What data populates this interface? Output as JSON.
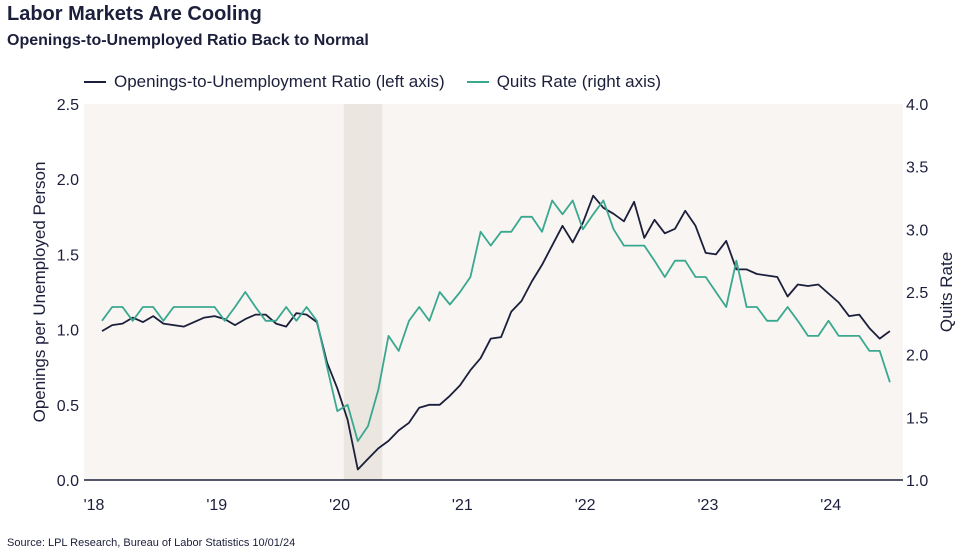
{
  "header": {
    "title": "Labor Markets Are Cooling",
    "subtitle": "Openings-to-Unemployed Ratio Back to Normal"
  },
  "footer": {
    "source": "Source: LPL Research, Bureau of Labor Statistics 10/01/24"
  },
  "colors": {
    "ratio": "#1c1f3b",
    "quits": "#3aa88f",
    "plot_bg": "#f8f5f3",
    "recession": "#ebe6df"
  },
  "chart_data": {
    "type": "line",
    "title": "Labor Markets Are Cooling",
    "subtitle": "Openings-to-Unemployed Ratio Back to Normal",
    "ylabel_left": "Openings per Unemployed Person",
    "ylabel_right": "Quits Rate",
    "ylim_left": [
      0,
      2.5
    ],
    "ylim_right": [
      1.0,
      4.0
    ],
    "yticks_left": [
      "0.0",
      "0.5",
      "1.0",
      "1.5",
      "2.0",
      "2.5"
    ],
    "yticks_right": [
      "1.0",
      "1.5",
      "2.0",
      "2.5",
      "3.0",
      "3.5",
      "4.0"
    ],
    "xticks": [
      {
        "label": "'18",
        "year": 2018
      },
      {
        "label": "'19",
        "year": 2019
      },
      {
        "label": "'20",
        "year": 2020
      },
      {
        "label": "'21",
        "year": 2021
      },
      {
        "label": "'22",
        "year": 2022
      },
      {
        "label": "'23",
        "year": 2023
      },
      {
        "label": "'24",
        "year": 2024
      }
    ],
    "legend_position": "top-left",
    "shaded_period": {
      "start": "2020-02",
      "end": "2020-04"
    },
    "series": [
      {
        "name": "Openings-to-Unemployment Ratio (left axis)",
        "axis": "left",
        "points": [
          [
            "2018-01",
            0.99
          ],
          [
            "2018-02",
            1.03
          ],
          [
            "2018-03",
            1.04
          ],
          [
            "2018-04",
            1.08
          ],
          [
            "2018-05",
            1.05
          ],
          [
            "2018-06",
            1.09
          ],
          [
            "2018-07",
            1.04
          ],
          [
            "2018-08",
            1.03
          ],
          [
            "2018-09",
            1.02
          ],
          [
            "2018-10",
            1.05
          ],
          [
            "2018-11",
            1.08
          ],
          [
            "2018-12",
            1.09
          ],
          [
            "2019-01",
            1.07
          ],
          [
            "2019-02",
            1.03
          ],
          [
            "2019-03",
            1.07
          ],
          [
            "2019-04",
            1.1
          ],
          [
            "2019-05",
            1.1
          ],
          [
            "2019-06",
            1.04
          ],
          [
            "2019-07",
            1.02
          ],
          [
            "2019-08",
            1.11
          ],
          [
            "2019-09",
            1.1
          ],
          [
            "2019-10",
            1.05
          ],
          [
            "2019-11",
            0.78
          ],
          [
            "2019-12",
            0.61
          ],
          [
            "2020-01",
            0.4
          ],
          [
            "2020-02",
            0.07
          ],
          [
            "2020-03",
            0.14
          ],
          [
            "2020-04",
            0.21
          ],
          [
            "2020-05",
            0.26
          ],
          [
            "2020-06",
            0.33
          ],
          [
            "2020-07",
            0.38
          ],
          [
            "2020-08",
            0.48
          ],
          [
            "2020-09",
            0.5
          ],
          [
            "2020-10",
            0.5
          ],
          [
            "2020-11",
            0.56
          ],
          [
            "2020-12",
            0.63
          ],
          [
            "2021-01",
            0.73
          ],
          [
            "2021-02",
            0.81
          ],
          [
            "2021-03",
            0.94
          ],
          [
            "2021-04",
            0.95
          ],
          [
            "2021-05",
            1.12
          ],
          [
            "2021-06",
            1.19
          ],
          [
            "2021-07",
            1.32
          ],
          [
            "2021-08",
            1.43
          ],
          [
            "2021-09",
            1.56
          ],
          [
            "2021-10",
            1.69
          ],
          [
            "2021-11",
            1.58
          ],
          [
            "2021-12",
            1.71
          ],
          [
            "2022-01",
            1.89
          ],
          [
            "2022-02",
            1.81
          ],
          [
            "2022-03",
            1.77
          ],
          [
            "2022-04",
            1.72
          ],
          [
            "2022-05",
            1.85
          ],
          [
            "2022-06",
            1.61
          ],
          [
            "2022-07",
            1.73
          ],
          [
            "2022-08",
            1.64
          ],
          [
            "2022-09",
            1.67
          ],
          [
            "2022-10",
            1.79
          ],
          [
            "2022-11",
            1.69
          ],
          [
            "2022-12",
            1.51
          ],
          [
            "2023-01",
            1.5
          ],
          [
            "2023-02",
            1.59
          ],
          [
            "2023-03",
            1.4
          ],
          [
            "2023-04",
            1.4
          ],
          [
            "2023-05",
            1.37
          ],
          [
            "2023-06",
            1.36
          ],
          [
            "2023-07",
            1.35
          ],
          [
            "2023-08",
            1.22
          ],
          [
            "2023-09",
            1.3
          ],
          [
            "2023-10",
            1.29
          ],
          [
            "2023-11",
            1.3
          ],
          [
            "2023-12",
            1.24
          ],
          [
            "2024-01",
            1.18
          ],
          [
            "2024-02",
            1.09
          ],
          [
            "2024-03",
            1.1
          ],
          [
            "2024-04",
            1.01
          ],
          [
            "2024-05",
            0.94
          ],
          [
            "2024-06",
            0.99
          ]
        ]
      },
      {
        "name": "Quits Rate (right axis)",
        "axis": "right",
        "points": [
          [
            "2018-01",
            2.27
          ],
          [
            "2018-02",
            2.38
          ],
          [
            "2018-03",
            2.38
          ],
          [
            "2018-04",
            2.27
          ],
          [
            "2018-05",
            2.38
          ],
          [
            "2018-06",
            2.38
          ],
          [
            "2018-07",
            2.27
          ],
          [
            "2018-08",
            2.38
          ],
          [
            "2018-09",
            2.38
          ],
          [
            "2018-10",
            2.38
          ],
          [
            "2018-11",
            2.38
          ],
          [
            "2018-12",
            2.38
          ],
          [
            "2019-01",
            2.27
          ],
          [
            "2019-02",
            2.38
          ],
          [
            "2019-03",
            2.5
          ],
          [
            "2019-04",
            2.38
          ],
          [
            "2019-05",
            2.27
          ],
          [
            "2019-06",
            2.27
          ],
          [
            "2019-07",
            2.38
          ],
          [
            "2019-08",
            2.27
          ],
          [
            "2019-09",
            2.38
          ],
          [
            "2019-10",
            2.27
          ],
          [
            "2019-11",
            1.9
          ],
          [
            "2019-12",
            1.55
          ],
          [
            "2020-01",
            1.6
          ],
          [
            "2020-02",
            1.31
          ],
          [
            "2020-03",
            1.43
          ],
          [
            "2020-04",
            1.72
          ],
          [
            "2020-05",
            2.15
          ],
          [
            "2020-06",
            2.03
          ],
          [
            "2020-07",
            2.27
          ],
          [
            "2020-08",
            2.38
          ],
          [
            "2020-09",
            2.27
          ],
          [
            "2020-10",
            2.5
          ],
          [
            "2020-11",
            2.4
          ],
          [
            "2020-12",
            2.5
          ],
          [
            "2021-01",
            2.62
          ],
          [
            "2021-02",
            2.98
          ],
          [
            "2021-03",
            2.87
          ],
          [
            "2021-04",
            2.98
          ],
          [
            "2021-05",
            2.98
          ],
          [
            "2021-06",
            3.1
          ],
          [
            "2021-07",
            3.1
          ],
          [
            "2021-08",
            2.98
          ],
          [
            "2021-09",
            3.23
          ],
          [
            "2021-10",
            3.12
          ],
          [
            "2021-11",
            3.23
          ],
          [
            "2021-12",
            3.0
          ],
          [
            "2022-01",
            3.12
          ],
          [
            "2022-02",
            3.23
          ],
          [
            "2022-03",
            3.0
          ],
          [
            "2022-04",
            2.87
          ],
          [
            "2022-05",
            2.87
          ],
          [
            "2022-06",
            2.87
          ],
          [
            "2022-07",
            2.75
          ],
          [
            "2022-08",
            2.62
          ],
          [
            "2022-09",
            2.75
          ],
          [
            "2022-10",
            2.75
          ],
          [
            "2022-11",
            2.62
          ],
          [
            "2022-12",
            2.62
          ],
          [
            "2023-01",
            2.5
          ],
          [
            "2023-02",
            2.38
          ],
          [
            "2023-03",
            2.75
          ],
          [
            "2023-04",
            2.38
          ],
          [
            "2023-05",
            2.38
          ],
          [
            "2023-06",
            2.27
          ],
          [
            "2023-07",
            2.27
          ],
          [
            "2023-08",
            2.38
          ],
          [
            "2023-09",
            2.27
          ],
          [
            "2023-10",
            2.15
          ],
          [
            "2023-11",
            2.15
          ],
          [
            "2023-12",
            2.27
          ],
          [
            "2024-01",
            2.15
          ],
          [
            "2024-02",
            2.15
          ],
          [
            "2024-03",
            2.15
          ],
          [
            "2024-04",
            2.03
          ],
          [
            "2024-05",
            2.03
          ],
          [
            "2024-06",
            1.78
          ]
        ]
      }
    ]
  }
}
